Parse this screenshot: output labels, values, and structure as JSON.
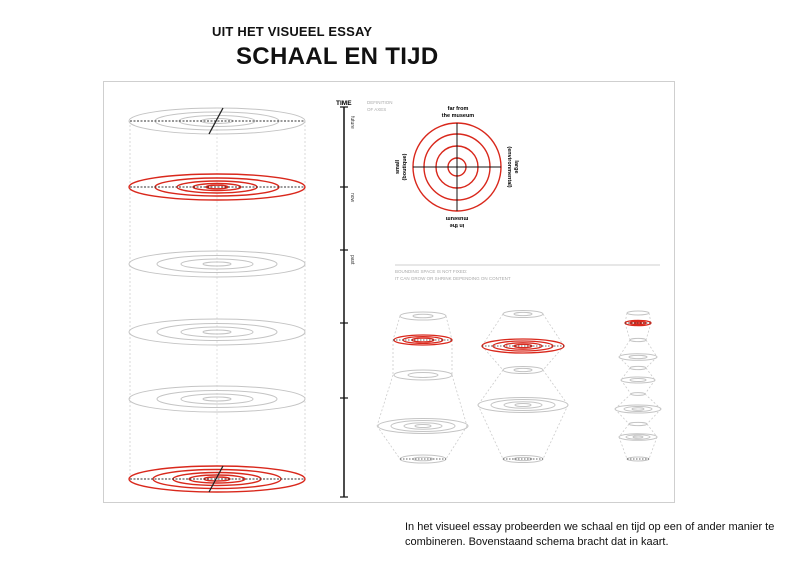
{
  "header": {
    "kicker": "UIT HET VISUEEL ESSAY",
    "title": "SCHAAL EN TIJD"
  },
  "time_axis": {
    "label": "TIME",
    "segments": [
      "future",
      "now",
      "past"
    ]
  },
  "definition": {
    "label_line1": "DEFINITION",
    "label_line2": "OF AXES",
    "top_line1": "far from",
    "top_line2": "the museum",
    "bottom_line1": "in the",
    "bottom_line2": "museum",
    "left_line1": "small",
    "left_line2": "(boutique)",
    "right_line1": "large",
    "right_line2": "(environmental)"
  },
  "bounding_note": {
    "line1": "BOUNDING SPACE IS NOT FIXED:",
    "line2": "IT CAN GROW OR SHRINK DEPENDING ON CONTENT"
  },
  "caption": "In het visueel essay probeerden we schaal en tijd op een of ander manier te combineren. Bovenstaand schema bracht dat in kaart.",
  "colors": {
    "red": "#d9281c",
    "grey": "#bdbdbd",
    "dark": "#111111"
  }
}
